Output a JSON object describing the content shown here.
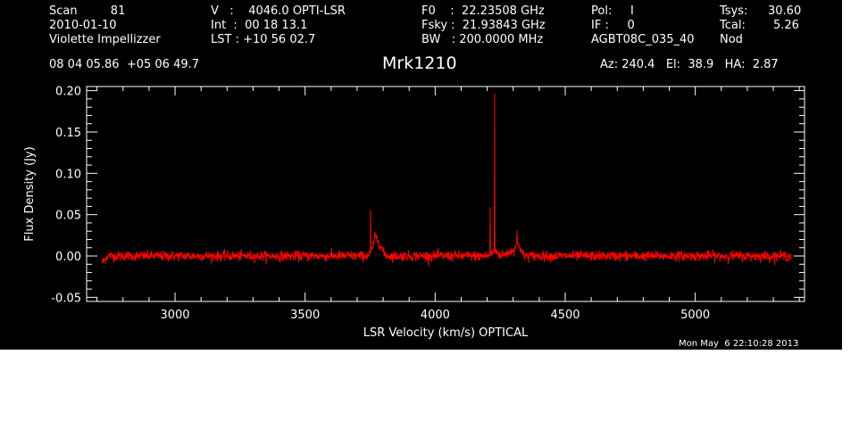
{
  "header": {
    "col1": [
      "Scan         81",
      "2010-01-10",
      "Violette Impellizzer"
    ],
    "col2": [
      "V   :    4046.0 OPTI-LSR",
      "Int  :  00 18 13.1",
      "LST : +10 56 02.7"
    ],
    "col3": [
      "F0    :  22.23508 GHz",
      "Fsky :  21.93843 GHz",
      "BW   : 200.0000 MHz"
    ],
    "col4": [
      "Pol:     I",
      "IF :     0",
      "AGBT08C_035_40"
    ],
    "col5": [
      "Tsys:",
      "Tcal:",
      "Nod"
    ],
    "col6": [
      "30.60",
      "5.26"
    ],
    "coords": "08 04 05.86  +05 06 49.7",
    "object": "Mrk1210",
    "azelha": "Az: 240.4   El:  38.9   HA:  2.87"
  },
  "timestamp": "Mon May  6 22:10:28 2013",
  "chart_data": {
    "type": "line",
    "xlabel": "LSR Velocity (km/s) OPTICAL",
    "ylabel": "Flux Density (Jy)",
    "xlim": [
      2660,
      5420
    ],
    "ylim": [
      -0.055,
      0.205
    ],
    "xticks": [
      3000,
      3500,
      4000,
      4500,
      5000
    ],
    "xtick_labels": [
      "3000",
      "3500",
      "4000",
      "4500",
      "5000"
    ],
    "yticks": [
      -0.05,
      0.0,
      0.05,
      0.1,
      0.15,
      0.2
    ],
    "ytick_labels": [
      "-0.05",
      "0.00",
      "0.05",
      "0.10",
      "0.15",
      "0.20"
    ],
    "grid": false,
    "line_color": "#ff0000",
    "axis_color": "#ffffff",
    "background": "#000000",
    "series": [
      {
        "x_range": [
          2720,
          5370
        ],
        "baseline": 0.0,
        "noise_rms": 0.003,
        "features": [
          {
            "x": 2725,
            "y": -0.01,
            "kind": "edge-dip"
          },
          {
            "x": 3752,
            "y": 0.056,
            "kind": "spike"
          },
          {
            "x": 3778,
            "y": 0.034,
            "kind": "peak"
          },
          {
            "x": 4212,
            "y": 0.059,
            "kind": "spike"
          },
          {
            "x": 4228,
            "y": 0.197,
            "kind": "spike"
          },
          {
            "x": 4315,
            "y": 0.031,
            "kind": "spike"
          }
        ]
      }
    ]
  }
}
